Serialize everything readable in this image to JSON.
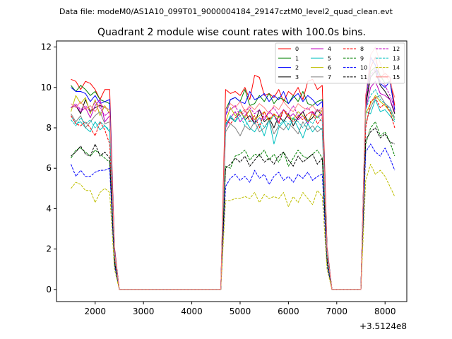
{
  "figure": {
    "suptitle": "Data file: modeM0/AS1A10_099T01_9000004184_29147cztM0_level2_quad_clean.evt",
    "title": "Quadrant 2 module wise count rates with 100.0s bins.",
    "offset_text": "+3.5124e8"
  },
  "chart_data": {
    "type": "line",
    "title": "Quadrant 2 module wise count rates with 100.0s bins.",
    "xlabel": "",
    "ylabel": "",
    "xlim": [
      1200,
      8450
    ],
    "ylim": [
      -0.6,
      12.3
    ],
    "x_offset": 351240000,
    "xticks": [
      2000,
      3000,
      4000,
      5000,
      6000,
      7000,
      8000
    ],
    "xtick_labels": [
      "2000",
      "3000",
      "4000",
      "5000",
      "6000",
      "7000",
      "8000"
    ],
    "yticks": [
      0,
      2,
      4,
      6,
      8,
      10,
      12
    ],
    "ytick_labels": [
      "0",
      "2",
      "4",
      "6",
      "8",
      "10",
      "12"
    ],
    "legend_position": "upper right",
    "grid": false,
    "x": [
      1500,
      1600,
      1700,
      1800,
      1900,
      2000,
      2100,
      2200,
      2300,
      2400,
      2500,
      2600,
      2700,
      2800,
      2900,
      3000,
      3100,
      3200,
      3300,
      3400,
      3500,
      3600,
      3700,
      3800,
      3900,
      4000,
      4100,
      4200,
      4300,
      4400,
      4500,
      4600,
      4700,
      4800,
      4900,
      5000,
      5100,
      5200,
      5300,
      5400,
      5500,
      5600,
      5700,
      5800,
      5900,
      6000,
      6100,
      6200,
      6300,
      6400,
      6500,
      6600,
      6700,
      6800,
      6900,
      7000,
      7100,
      7200,
      7300,
      7400,
      7500,
      7600,
      7700,
      7800,
      7900,
      8000,
      8100,
      8200
    ],
    "series": [
      {
        "name": "0",
        "color": "#ff0000",
        "dash": "solid",
        "values": [
          10.4,
          10.3,
          9.9,
          10.3,
          10.2,
          9.9,
          9.4,
          9.9,
          9.9,
          2.1,
          0,
          0,
          0,
          0,
          0,
          0,
          0,
          0,
          0,
          0,
          0,
          0,
          0,
          0,
          0,
          0,
          0,
          0,
          0,
          0,
          0,
          0,
          9.9,
          9.7,
          9.8,
          9.6,
          10.0,
          9.4,
          10.6,
          10.5,
          9.6,
          9.7,
          9.5,
          9.9,
          9.3,
          9.8,
          9.6,
          10.0,
          9.4,
          10.3,
          10.4,
          9.9,
          10.1,
          2.1,
          0,
          0,
          0,
          0,
          0,
          0,
          0,
          9.6,
          11.0,
          11.5,
          10.5,
          10.7,
          10.5,
          9.1
        ]
      },
      {
        "name": "1",
        "color": "#008000",
        "dash": "solid",
        "values": [
          10.1,
          9.8,
          10.1,
          9.9,
          9.6,
          9.8,
          9.4,
          9.3,
          9.2,
          2.0,
          0,
          0,
          0,
          0,
          0,
          0,
          0,
          0,
          0,
          0,
          0,
          0,
          0,
          0,
          0,
          0,
          0,
          0,
          0,
          0,
          0,
          0,
          8.9,
          9.4,
          9.5,
          9.3,
          9.9,
          9.1,
          9.2,
          9.6,
          9.3,
          9.7,
          9.2,
          9.5,
          9.4,
          9.2,
          9.6,
          9.3,
          9.8,
          9.2,
          9.1,
          9.3,
          9.4,
          2.0,
          0,
          0,
          0,
          0,
          0,
          0,
          0,
          9.2,
          10.8,
          11.0,
          10.6,
          10.2,
          10.3,
          8.9
        ]
      },
      {
        "name": "2",
        "color": "#0000ff",
        "dash": "solid",
        "values": [
          10.0,
          9.8,
          9.8,
          9.7,
          9.3,
          9.6,
          9.2,
          9.3,
          9.4,
          2.0,
          0,
          0,
          0,
          0,
          0,
          0,
          0,
          0,
          0,
          0,
          0,
          0,
          0,
          0,
          0,
          0,
          0,
          0,
          0,
          0,
          0,
          0,
          8.6,
          9.4,
          9.5,
          9.3,
          9.2,
          9.8,
          9.4,
          9.5,
          9.7,
          9.3,
          9.6,
          9.4,
          9.8,
          9.2,
          9.5,
          9.7,
          9.3,
          9.6,
          9.4,
          9.1,
          9.3,
          2.0,
          0,
          0,
          0,
          0,
          0,
          0,
          0,
          9.3,
          11.5,
          11.1,
          10.2,
          10.0,
          10.3,
          8.9
        ]
      },
      {
        "name": "3",
        "color": "#000000",
        "dash": "solid",
        "values": [
          9.0,
          9.1,
          8.7,
          9.4,
          8.8,
          9.0,
          9.1,
          9.0,
          8.9,
          1.9,
          0,
          0,
          0,
          0,
          0,
          0,
          0,
          0,
          0,
          0,
          0,
          0,
          0,
          0,
          0,
          0,
          0,
          0,
          0,
          0,
          0,
          0,
          8.2,
          8.5,
          8.3,
          8.9,
          8.4,
          8.6,
          8.2,
          8.9,
          8.3,
          8.5,
          8.0,
          8.6,
          8.3,
          8.7,
          8.1,
          8.5,
          8.8,
          8.3,
          8.5,
          8.9,
          8.6,
          1.9,
          0,
          0,
          0,
          0,
          0,
          0,
          0,
          9.1,
          10.5,
          10.8,
          10.1,
          9.8,
          9.4,
          8.7
        ]
      },
      {
        "name": "4",
        "color": "#bf00bf",
        "dash": "solid",
        "values": [
          9.0,
          9.1,
          8.8,
          9.0,
          8.5,
          9.1,
          9.4,
          8.3,
          8.6,
          1.8,
          0,
          0,
          0,
          0,
          0,
          0,
          0,
          0,
          0,
          0,
          0,
          0,
          0,
          0,
          0,
          0,
          0,
          0,
          0,
          0,
          0,
          0,
          8.0,
          8.5,
          8.8,
          8.3,
          8.6,
          8.9,
          8.2,
          8.5,
          8.4,
          8.8,
          8.6,
          8.3,
          8.9,
          8.5,
          8.7,
          8.4,
          8.6,
          8.2,
          8.8,
          8.5,
          8.7,
          1.8,
          0,
          0,
          0,
          0,
          0,
          0,
          0,
          8.9,
          10.0,
          10.3,
          9.7,
          9.6,
          9.4,
          8.8
        ]
      },
      {
        "name": "5",
        "color": "#00bfbf",
        "dash": "solid",
        "values": [
          8.6,
          8.2,
          8.3,
          8.0,
          7.8,
          8.3,
          7.9,
          8.1,
          7.8,
          1.7,
          0,
          0,
          0,
          0,
          0,
          0,
          0,
          0,
          0,
          0,
          0,
          0,
          0,
          0,
          0,
          0,
          0,
          0,
          0,
          0,
          0,
          0,
          8.1,
          8.6,
          8.3,
          8.9,
          8.4,
          8.0,
          7.8,
          8.2,
          7.6,
          8.4,
          7.2,
          8.0,
          8.3,
          7.9,
          8.5,
          8.0,
          7.5,
          8.2,
          7.8,
          8.1,
          7.9,
          1.7,
          0,
          0,
          0,
          0,
          0,
          0,
          0,
          8.8,
          8.7,
          9.4,
          8.8,
          8.9,
          8.6,
          8.3
        ]
      },
      {
        "name": "6",
        "color": "#bfbf00",
        "dash": "solid",
        "values": [
          8.8,
          9.6,
          9.2,
          9.5,
          8.7,
          9.4,
          8.6,
          9.1,
          8.7,
          1.9,
          0,
          0,
          0,
          0,
          0,
          0,
          0,
          0,
          0,
          0,
          0,
          0,
          0,
          0,
          0,
          0,
          0,
          0,
          0,
          0,
          0,
          0,
          8.3,
          9.0,
          8.6,
          8.8,
          8.5,
          8.9,
          8.4,
          8.6,
          8.8,
          8.3,
          8.7,
          8.5,
          8.9,
          8.6,
          8.4,
          8.8,
          8.6,
          8.3,
          8.7,
          8.5,
          8.9,
          1.9,
          0,
          0,
          0,
          0,
          0,
          0,
          0,
          8.7,
          9.2,
          9.6,
          9.3,
          9.1,
          8.8,
          8.4
        ]
      },
      {
        "name": "7",
        "color": "#808080",
        "dash": "solid",
        "values": [
          8.7,
          8.3,
          8.6,
          8.0,
          8.3,
          8.6,
          8.8,
          8.2,
          8.3,
          1.7,
          0,
          0,
          0,
          0,
          0,
          0,
          0,
          0,
          0,
          0,
          0,
          0,
          0,
          0,
          0,
          0,
          0,
          0,
          0,
          0,
          0,
          0,
          7.8,
          8.2,
          8.0,
          7.6,
          8.1,
          7.9,
          8.3,
          7.8,
          8.0,
          8.4,
          7.7,
          8.1,
          7.9,
          8.2,
          8.0,
          7.7,
          8.3,
          7.9,
          8.1,
          7.8,
          8.0,
          1.7,
          0,
          0,
          0,
          0,
          0,
          0,
          0,
          8.2,
          9.0,
          9.5,
          9.6,
          9.2,
          9.0,
          8.5
        ]
      },
      {
        "name": "8",
        "color": "#ff0000",
        "dash": "dashed",
        "values": [
          8.6,
          8.2,
          8.1,
          8.3,
          8.0,
          7.6,
          8.3,
          7.9,
          7.2,
          1.6,
          0,
          0,
          0,
          0,
          0,
          0,
          0,
          0,
          0,
          0,
          0,
          0,
          0,
          0,
          0,
          0,
          0,
          0,
          0,
          0,
          0,
          0,
          8.4,
          8.2,
          8.5,
          8.7,
          8.9,
          8.3,
          8.6,
          8.0,
          8.8,
          8.4,
          8.7,
          8.2,
          8.9,
          8.5,
          8.3,
          8.6,
          8.4,
          8.7,
          8.8,
          8.2,
          8.5,
          1.7,
          0,
          0,
          0,
          0,
          0,
          0,
          0,
          8.0,
          9.3,
          9.5,
          9.0,
          9.2,
          8.8,
          8.0
        ]
      },
      {
        "name": "9",
        "color": "#008000",
        "dash": "dashed",
        "values": [
          6.5,
          6.9,
          7.0,
          6.8,
          6.6,
          6.9,
          6.7,
          6.5,
          6.3,
          1.3,
          0,
          0,
          0,
          0,
          0,
          0,
          0,
          0,
          0,
          0,
          0,
          0,
          0,
          0,
          0,
          0,
          0,
          0,
          0,
          0,
          0,
          0,
          6.1,
          6.0,
          6.6,
          6.7,
          6.9,
          6.4,
          6.7,
          6.6,
          6.9,
          6.4,
          6.7,
          6.3,
          6.8,
          6.1,
          6.5,
          6.9,
          6.6,
          6.5,
          6.7,
          6.9,
          6.5,
          1.3,
          0,
          0,
          0,
          0,
          0,
          0,
          0,
          7.2,
          8.0,
          8.3,
          7.6,
          7.8,
          7.3,
          6.6
        ]
      },
      {
        "name": "10",
        "color": "#0000ff",
        "dash": "dashed",
        "values": [
          6.2,
          5.6,
          5.9,
          5.6,
          5.6,
          5.8,
          5.9,
          5.9,
          6.0,
          1.2,
          0,
          0,
          0,
          0,
          0,
          0,
          0,
          0,
          0,
          0,
          0,
          0,
          0,
          0,
          0,
          0,
          0,
          0,
          0,
          0,
          0,
          0,
          5.1,
          5.5,
          5.7,
          5.4,
          5.6,
          5.3,
          5.9,
          5.5,
          5.7,
          5.2,
          5.6,
          5.8,
          5.4,
          5.6,
          5.3,
          5.7,
          5.5,
          5.8,
          5.4,
          5.6,
          5.7,
          1.2,
          0,
          0,
          0,
          0,
          0,
          0,
          0,
          6.8,
          7.2,
          6.8,
          6.6,
          7.0,
          6.5,
          5.9
        ]
      },
      {
        "name": "11",
        "color": "#000000",
        "dash": "dashed",
        "values": [
          6.6,
          6.8,
          7.1,
          6.7,
          6.6,
          7.2,
          6.6,
          6.8,
          6.5,
          1.4,
          0,
          0,
          0,
          0,
          0,
          0,
          0,
          0,
          0,
          0,
          0,
          0,
          0,
          0,
          0,
          0,
          0,
          0,
          0,
          0,
          0,
          0,
          6.0,
          6.2,
          6.5,
          6.3,
          6.6,
          6.1,
          6.4,
          6.7,
          6.3,
          6.5,
          6.2,
          6.6,
          6.8,
          6.4,
          6.1,
          6.6,
          6.3,
          6.5,
          6.7,
          6.2,
          6.5,
          1.4,
          0,
          0,
          0,
          0,
          0,
          0,
          0,
          7.4,
          7.8,
          8.0,
          7.5,
          7.7,
          7.3,
          7.2
        ]
      },
      {
        "name": "12",
        "color": "#bf00bf",
        "dash": "dashed",
        "values": [
          9.0,
          9.2,
          8.9,
          9.1,
          8.8,
          9.3,
          9.0,
          8.6,
          8.8,
          1.9,
          0,
          0,
          0,
          0,
          0,
          0,
          0,
          0,
          0,
          0,
          0,
          0,
          0,
          0,
          0,
          0,
          0,
          0,
          0,
          0,
          0,
          0,
          8.7,
          8.9,
          9.1,
          8.6,
          8.8,
          9.0,
          8.7,
          8.9,
          8.5,
          8.8,
          9.0,
          8.6,
          8.9,
          8.7,
          9.1,
          8.6,
          8.8,
          9.0,
          8.7,
          8.9,
          8.8,
          1.9,
          0,
          0,
          0,
          0,
          0,
          0,
          0,
          9.4,
          10.6,
          10.9,
          10.3,
          10.1,
          9.6,
          9.0
        ]
      },
      {
        "name": "13",
        "color": "#00bfbf",
        "dash": "dashed",
        "values": [
          8.4,
          8.1,
          8.5,
          8.2,
          8.4,
          8.0,
          8.3,
          8.1,
          7.9,
          1.7,
          0,
          0,
          0,
          0,
          0,
          0,
          0,
          0,
          0,
          0,
          0,
          0,
          0,
          0,
          0,
          0,
          0,
          0,
          0,
          0,
          0,
          0,
          8.2,
          8.5,
          8.3,
          8.6,
          8.1,
          8.4,
          8.2,
          8.5,
          8.0,
          8.3,
          8.6,
          8.1,
          8.4,
          8.2,
          8.5,
          8.3,
          8.0,
          8.4,
          8.2,
          8.6,
          8.3,
          1.7,
          0,
          0,
          0,
          0,
          0,
          0,
          0,
          8.9,
          9.6,
          9.9,
          9.4,
          9.2,
          8.9,
          8.4
        ]
      },
      {
        "name": "14",
        "color": "#bfbf00",
        "dash": "dashed",
        "values": [
          5.0,
          5.3,
          5.2,
          4.9,
          4.9,
          4.3,
          4.8,
          5.0,
          4.8,
          1.0,
          0,
          0,
          0,
          0,
          0,
          0,
          0,
          0,
          0,
          0,
          0,
          0,
          0,
          0,
          0,
          0,
          0,
          0,
          0,
          0,
          0,
          0,
          4.4,
          4.4,
          4.5,
          4.5,
          4.6,
          4.5,
          4.8,
          4.3,
          4.7,
          4.5,
          4.6,
          4.5,
          4.8,
          4.1,
          4.6,
          4.3,
          4.8,
          4.5,
          4.2,
          4.9,
          4.6,
          1.0,
          0,
          0,
          0,
          0,
          0,
          0,
          0,
          5.4,
          6.2,
          5.7,
          5.9,
          5.6,
          5.1,
          4.6
        ]
      },
      {
        "name": "15",
        "color": "#ff7f7f",
        "dash": "solid",
        "values": [
          9.2,
          9.0,
          9.3,
          8.9,
          9.1,
          8.8,
          9.2,
          9.0,
          8.9,
          1.9,
          0,
          0,
          0,
          0,
          0,
          0,
          0,
          0,
          0,
          0,
          0,
          0,
          0,
          0,
          0,
          0,
          0,
          0,
          0,
          0,
          0,
          0,
          8.9,
          9.2,
          9.0,
          9.3,
          8.8,
          9.1,
          8.9,
          9.2,
          9.0,
          8.7,
          9.1,
          8.9,
          9.3,
          9.0,
          8.8,
          9.2,
          9.0,
          8.9,
          9.1,
          8.8,
          9.0,
          1.9,
          0,
          0,
          0,
          0,
          0,
          0,
          0,
          9.5,
          11.6,
          12.0,
          11.2,
          10.6,
          10.3,
          9.5
        ]
      }
    ]
  }
}
